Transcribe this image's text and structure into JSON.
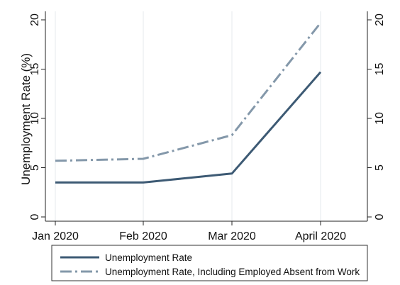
{
  "chart_data": {
    "type": "line",
    "categories": [
      "Jan 2020",
      "Feb 2020",
      "Mar 2020",
      "April 2020"
    ],
    "ylabel": "Unemployment Rate (%)",
    "xlabel": "",
    "ylim": [
      0,
      20
    ],
    "yticks": [
      "0",
      "5",
      "10",
      "15",
      "20"
    ],
    "y_axis_mirrored_right": true,
    "grid": "vertical lines at category ticks",
    "legend_position": "bottom",
    "series": [
      {
        "name": "Unemployment Rate",
        "values": [
          3.5,
          3.5,
          4.4,
          14.7
        ],
        "color": "#3d5a74",
        "style": "solid"
      },
      {
        "name": "Unemployment Rate, Including Employed Absent from Work",
        "values": [
          5.7,
          5.9,
          8.3,
          19.7
        ],
        "color": "#8498aa",
        "style": "dash-dot"
      }
    ]
  }
}
